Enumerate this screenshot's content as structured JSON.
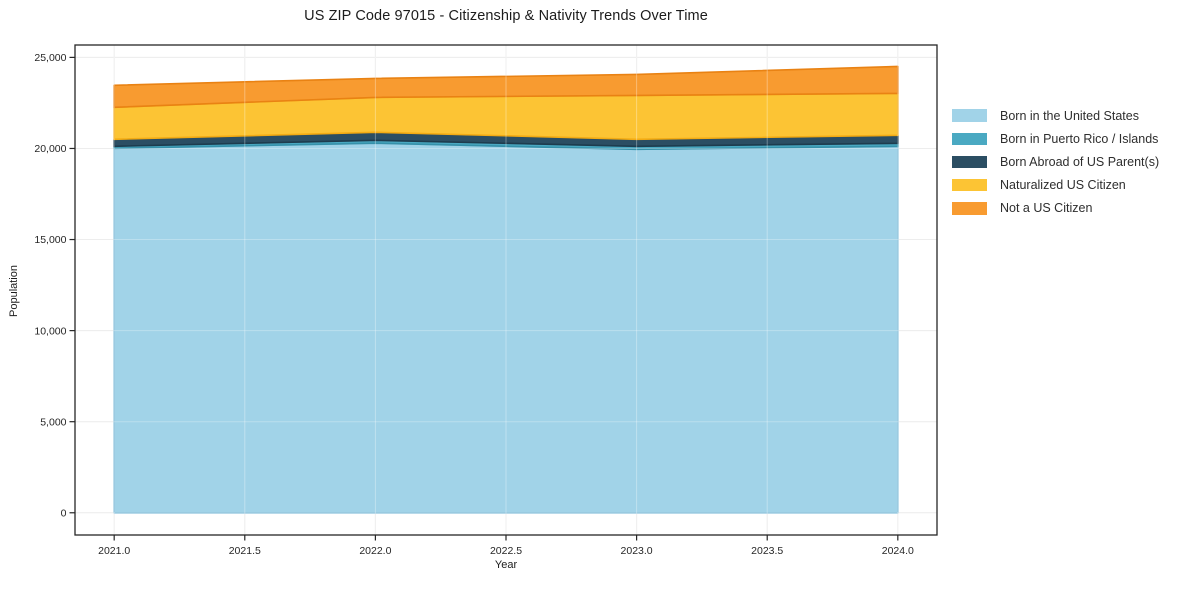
{
  "chart_data": {
    "type": "area",
    "stacked": true,
    "title": "US ZIP Code 97015 - Citizenship & Nativity Trends Over Time",
    "xlabel": "Year",
    "ylabel": "Population",
    "x": [
      2021,
      2022,
      2023,
      2024
    ],
    "series": [
      {
        "name": "Born in the United States",
        "color": "#a1d3e8",
        "edge_color": "#7fbcd9",
        "values": [
          20010,
          20290,
          19955,
          20120
        ]
      },
      {
        "name": "Born in Puerto Rico / Islands",
        "color": "#4aa9c2",
        "edge_color": "#3691aa",
        "values": [
          110,
          160,
          165,
          165
        ]
      },
      {
        "name": "Born Abroad of US Parent(s)",
        "color": "#2b4e63",
        "edge_color": "#1e3c4e",
        "values": [
          385,
          440,
          385,
          440
        ]
      },
      {
        "name": "Naturalized US Citizen",
        "color": "#fcc434",
        "edge_color": "#f3ab13",
        "values": [
          1755,
          1915,
          2410,
          2300
        ]
      },
      {
        "name": "Not a US Citizen",
        "color": "#f89b30",
        "edge_color": "#e98213",
        "values": [
          1205,
          1040,
          1150,
          1480
        ]
      }
    ],
    "totals": [
      23465,
      23845,
      24065,
      24505
    ],
    "x_ticks": {
      "values": [
        2021.0,
        2021.5,
        2022.0,
        2022.5,
        2023.0,
        2023.5,
        2024.0
      ],
      "labels": [
        "2021.0",
        "2021.5",
        "2022.0",
        "2022.5",
        "2023.0",
        "2023.5",
        "2024.0"
      ]
    },
    "y_ticks": {
      "values": [
        0,
        5000,
        10000,
        15000,
        20000,
        25000
      ],
      "labels": [
        "0",
        "5,000",
        "10,000",
        "15,000",
        "20,000",
        "25,000"
      ]
    },
    "xlim": [
      2020.85,
      2024.15
    ],
    "ylim": [
      -1220,
      25680
    ],
    "grid": true,
    "grid_color": "#e7e7e7",
    "spine_color": "#262626",
    "tick_label_color": "#262626",
    "legend_position": "right-outside"
  }
}
